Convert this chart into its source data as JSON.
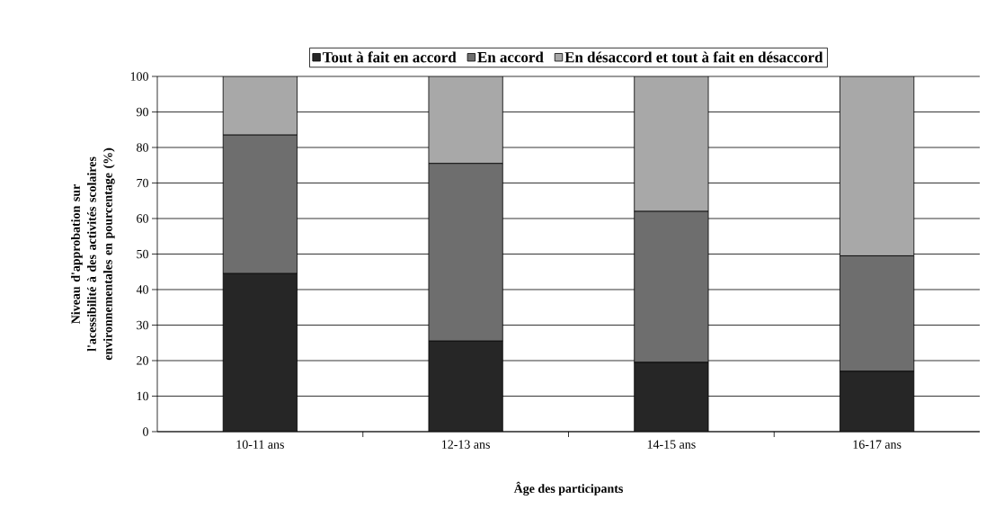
{
  "chart_data": {
    "type": "bar",
    "stacked": true,
    "xlabel": "Âge des participants",
    "ylabel": "Niveau d'approbation sur l'acessibilité à des activités scolaires environnementales en pourcentage (%)",
    "categories": [
      "10-11 ans",
      "12-13 ans",
      "14-15 ans",
      "16-17 ans"
    ],
    "series": [
      {
        "name": "Tout à fait en accord",
        "color": "#262626",
        "values": [
          44.5,
          25.5,
          19.5,
          17
        ]
      },
      {
        "name": "En accord",
        "color": "#6e6e6e",
        "values": [
          39,
          50,
          42.5,
          32.5
        ]
      },
      {
        "name": "En désaccord et tout à fait en désaccord",
        "color": "#a8a8a8",
        "values": [
          16.5,
          24.5,
          38,
          50.5
        ]
      }
    ],
    "ylim": [
      0,
      100
    ],
    "yticks": [
      0,
      10,
      20,
      30,
      40,
      50,
      60,
      70,
      80,
      90,
      100
    ],
    "grid": "y",
    "legend": "top"
  }
}
